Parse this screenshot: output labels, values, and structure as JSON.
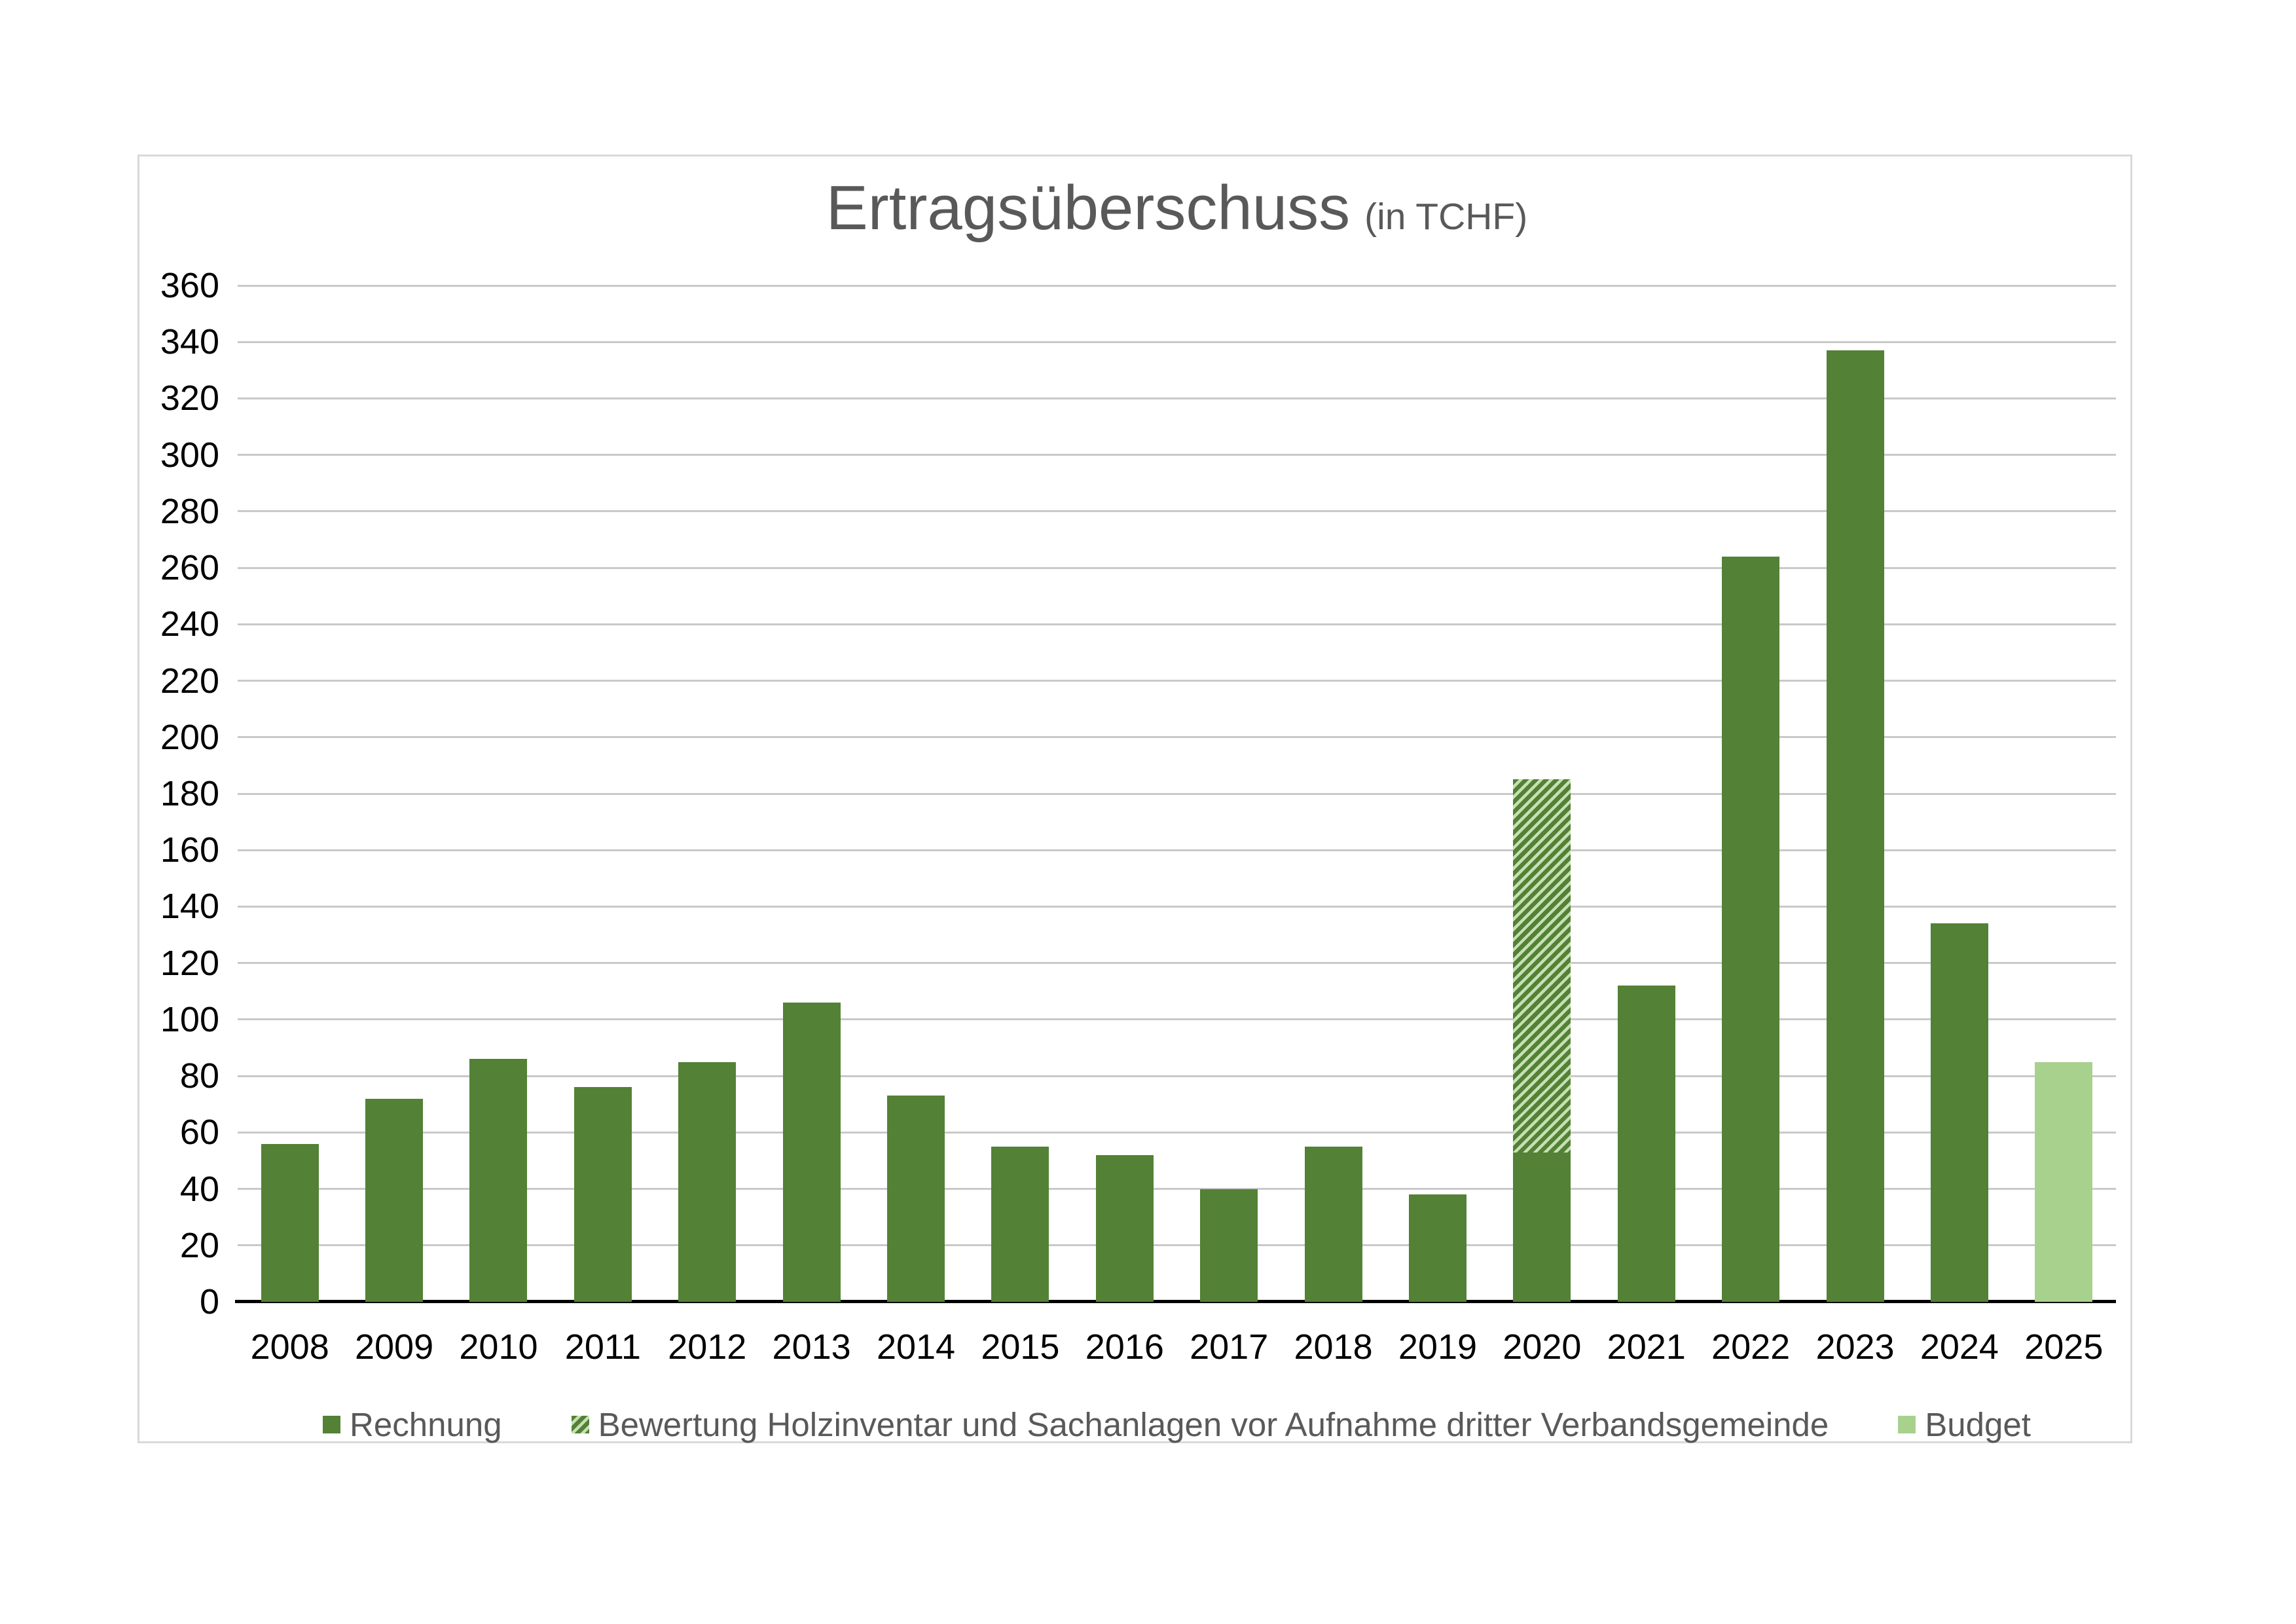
{
  "title": {
    "main": "Ertragsüberschuss",
    "sub": "(in TCHF)"
  },
  "colors": {
    "rechnung": "#538135",
    "budget": "#a9d18e",
    "hatch_light": "#c6e0b4",
    "gridline": "#c9c9c9",
    "axis": "#000000",
    "text_muted": "#595959",
    "panel_border": "#d9d9d9"
  },
  "legend": {
    "items": [
      {
        "name": "rechnung",
        "label": "Rechnung",
        "swatch": "solid-dark"
      },
      {
        "name": "bewertung",
        "label": "Bewertung Holzinventar und Sachanlagen vor Aufnahme dritter Verbandsgemeinde",
        "swatch": "hatched"
      },
      {
        "name": "budget",
        "label": "Budget",
        "swatch": "solid-light"
      }
    ]
  },
  "chart_data": {
    "type": "bar",
    "title": "Ertragsüberschuss (in TCHF)",
    "categories": [
      "2008",
      "2009",
      "2010",
      "2011",
      "2012",
      "2013",
      "2014",
      "2015",
      "2016",
      "2017",
      "2018",
      "2019",
      "2020",
      "2021",
      "2022",
      "2023",
      "2024",
      "2025"
    ],
    "series": [
      {
        "name": "Rechnung",
        "style": "solid-dark",
        "values": [
          56,
          72,
          86,
          76,
          85,
          106,
          73,
          55,
          52,
          40,
          55,
          38,
          53,
          112,
          264,
          337,
          134,
          null
        ]
      },
      {
        "name": "Bewertung Holzinventar und Sachanlagen vor Aufnahme dritter Verbandsgemeinde",
        "style": "hatched",
        "stacked_on": "Rechnung",
        "values": [
          null,
          null,
          null,
          null,
          null,
          null,
          null,
          null,
          null,
          null,
          null,
          null,
          132,
          null,
          null,
          null,
          null,
          null
        ]
      },
      {
        "name": "Budget",
        "style": "solid-light",
        "values": [
          null,
          null,
          null,
          null,
          null,
          null,
          null,
          null,
          null,
          null,
          null,
          null,
          null,
          null,
          null,
          null,
          null,
          85
        ]
      }
    ],
    "stacked_total_2020": 185,
    "xlabel": "",
    "ylabel": "",
    "ylim": [
      0,
      360
    ],
    "ytick_step": 20,
    "yticks": [
      0,
      20,
      40,
      60,
      80,
      100,
      120,
      140,
      160,
      180,
      200,
      220,
      240,
      260,
      280,
      300,
      320,
      340,
      360
    ],
    "grid": true,
    "legend_position": "bottom"
  }
}
